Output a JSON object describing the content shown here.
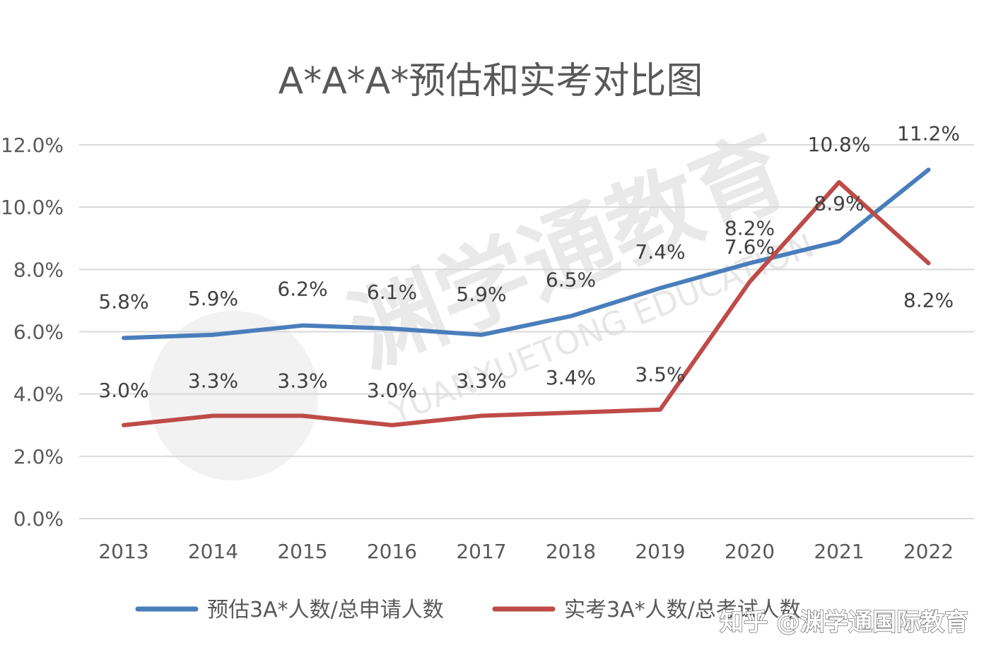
{
  "chart_data": {
    "type": "line",
    "title": "A*A*A*预估和实考对比图",
    "categories": [
      "2013",
      "2014",
      "2015",
      "2016",
      "2017",
      "2018",
      "2019",
      "2020",
      "2021",
      "2022"
    ],
    "ylim": [
      0,
      12
    ],
    "yticks": [
      "0.0%",
      "2.0%",
      "4.0%",
      "6.0%",
      "8.0%",
      "10.0%",
      "12.0%"
    ],
    "grid": true,
    "legend_position": "bottom",
    "series": [
      {
        "name": "预估3A*人数/总申请人数",
        "color": "#4a7ebb",
        "values": [
          5.8,
          5.9,
          6.2,
          6.1,
          5.9,
          6.5,
          7.4,
          8.2,
          8.9,
          11.2
        ],
        "labels": [
          "5.8%",
          "5.9%",
          "6.2%",
          "6.1%",
          "5.9%",
          "6.5%",
          "7.4%",
          "8.2%",
          "8.9%",
          "11.2%"
        ]
      },
      {
        "name": "实考3A*人数/总考试人数",
        "color": "#be4b48",
        "values": [
          3.0,
          3.3,
          3.3,
          3.0,
          3.3,
          3.4,
          3.5,
          7.6,
          10.8,
          8.2
        ],
        "labels": [
          "3.0%",
          "3.3%",
          "3.3%",
          "3.0%",
          "3.3%",
          "3.4%",
          "3.5%",
          "7.6%",
          "10.8%",
          "8.2%"
        ]
      }
    ]
  },
  "watermark": {
    "text": "渊学通教育",
    "subtext": "YUANXUETONG EDUCATION",
    "credit": "知乎 @渊学通国际教育"
  }
}
